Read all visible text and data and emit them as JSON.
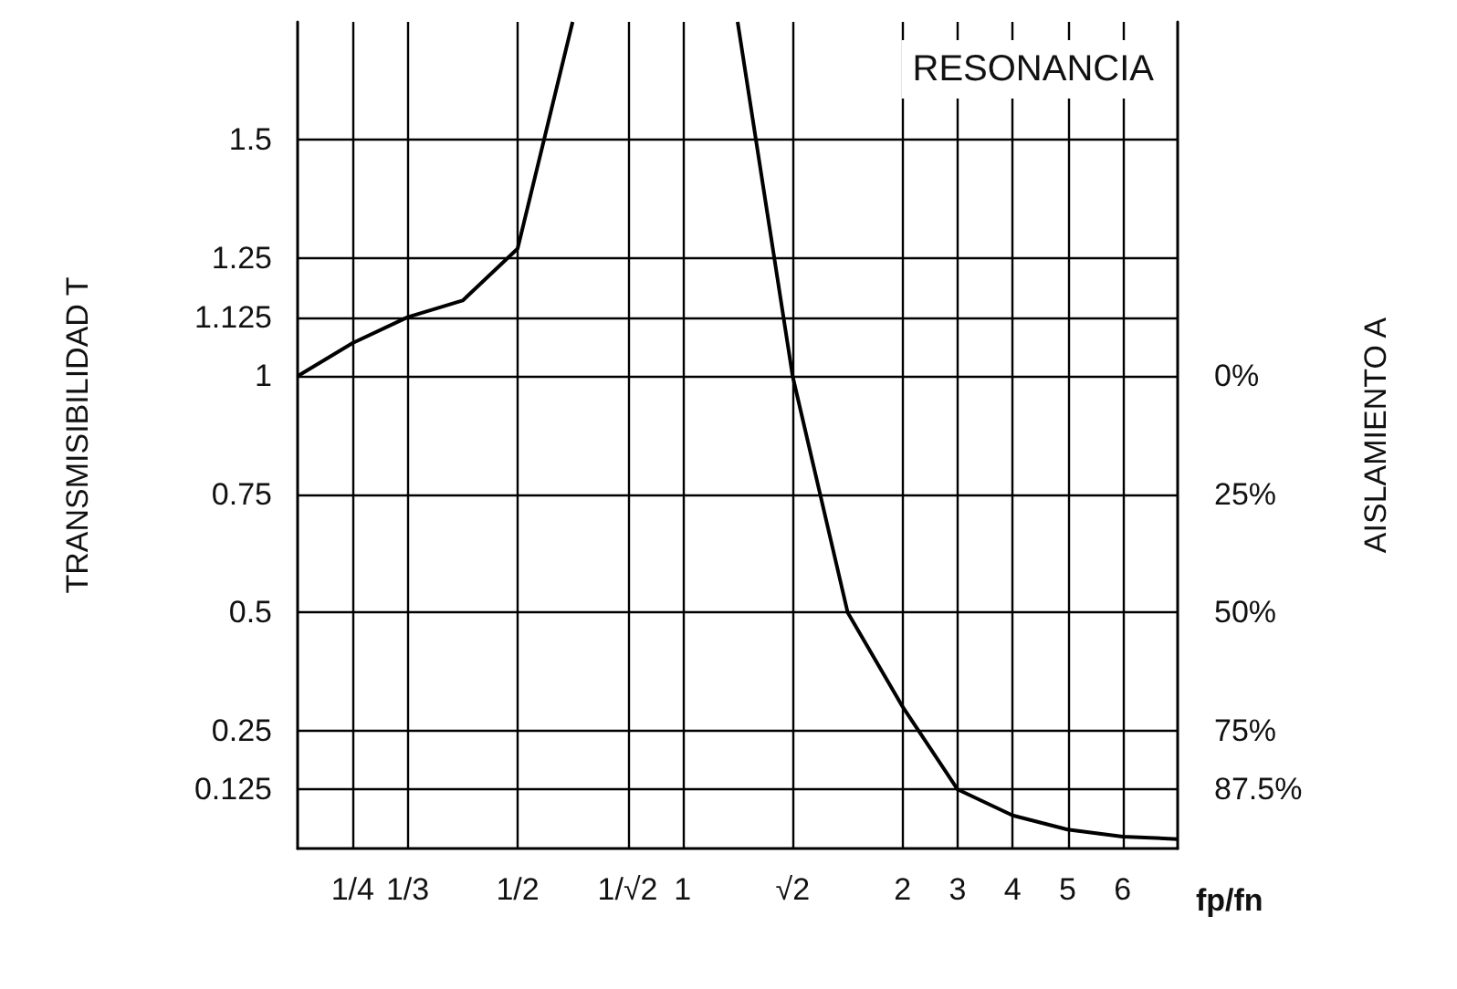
{
  "chart_data": {
    "type": "line",
    "xlabel": "fp/fn",
    "ylabel": "TRANSMISIBILIDAD T",
    "y2label": "AISLAMIENTO A",
    "annotations": [
      "RESONANCIA"
    ],
    "categories": [
      null,
      "1/4",
      "1/3",
      null,
      "1/2",
      null,
      "1/√2",
      "1",
      null,
      "√2",
      null,
      "2",
      "3",
      "4",
      "5",
      "6",
      null
    ],
    "series": [
      {
        "color": "#000000",
        "values": [
          1,
          1.07,
          1.125,
          1.16,
          1.27,
          1.75,
          null,
          null,
          null,
          null,
          null,
          null,
          null,
          null,
          null,
          null,
          null
        ]
      },
      {
        "color": "#000000",
        "values": [
          null,
          null,
          null,
          null,
          null,
          null,
          null,
          null,
          1.75,
          1,
          0.5,
          0.3,
          0.125,
          0.07,
          0.04,
          0.025,
          0.02
        ]
      }
    ],
    "ylim": [
      0,
      1.75
    ],
    "yticks": [
      0.125,
      0.25,
      0.5,
      0.75,
      1,
      1.125,
      1.25,
      1.5
    ],
    "y2lim": [
      100,
      -75
    ],
    "y2ticks": [
      {
        "value": 0,
        "label": "0%"
      },
      {
        "value": 25,
        "label": "25%"
      },
      {
        "value": 50,
        "label": "50%"
      },
      {
        "value": 75,
        "label": "75%"
      },
      {
        "value": 87.5,
        "label": "87.5%"
      }
    ],
    "grid": true
  }
}
